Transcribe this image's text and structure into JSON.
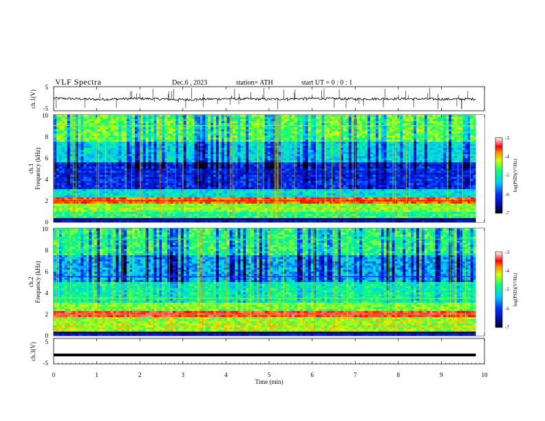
{
  "header": {
    "title": "VLF  Spectra",
    "date": "Dec.6  , 2023",
    "station": "station= ATH",
    "start_ut": "start  UT  =    0 : 0  : 1"
  },
  "chart_data": [
    {
      "type": "line",
      "panel": "ch1-waveform",
      "ylabel": "ch.1(V)",
      "ylim": [
        -5,
        5
      ],
      "yticks": [
        "5",
        "-5"
      ],
      "x": [
        0,
        1,
        2,
        3,
        4,
        5,
        6,
        7,
        8,
        9,
        9.8
      ],
      "values": [
        0.2,
        -0.3,
        0.1,
        -0.4,
        0.0,
        -0.2,
        0.1,
        -0.1,
        0.0,
        -0.2,
        -0.1
      ]
    },
    {
      "type": "heatmap",
      "panel": "ch1-spectrogram",
      "ylabel": "ch.1\nFrequency (kHz)",
      "ylim": [
        0,
        10
      ],
      "yticks": [
        "0",
        "2",
        "4",
        "6",
        "8",
        "10"
      ],
      "colorbar": {
        "label": "log(PSD)(V²/Hz)",
        "range": [
          -7,
          -3
        ],
        "ticks": [
          "-3",
          "-4",
          "-5",
          "-6",
          "-7"
        ]
      },
      "bands": [
        {
          "freq_khz": 2.0,
          "level": -3.5
        },
        {
          "freq_khz": 1.5,
          "level": -4.5
        },
        {
          "freq_khz": 4.5,
          "level": -6.5
        },
        {
          "freq_khz": 9.0,
          "level": -4.5
        }
      ]
    },
    {
      "type": "heatmap",
      "panel": "ch2-spectrogram",
      "ylabel": "ch.2\nFrequency (kHz)",
      "ylim": [
        0,
        10
      ],
      "yticks": [
        "0",
        "2",
        "4",
        "6",
        "8",
        "10"
      ],
      "colorbar": {
        "label": "log(PSD)(V²/Hz)",
        "range": [
          -7,
          -3
        ],
        "ticks": [
          "-3",
          "-4",
          "-5",
          "-6",
          "-7"
        ]
      },
      "bands": [
        {
          "freq_khz": 2.0,
          "level": -3.3
        },
        {
          "freq_khz": 3.5,
          "level": -4.5
        },
        {
          "freq_khz": 5.5,
          "level": -6.0
        },
        {
          "freq_khz": 9.0,
          "level": -4.8
        }
      ]
    },
    {
      "type": "line",
      "panel": "ch3-waveform",
      "ylabel": "ch.3(V)",
      "ylim": [
        -5,
        5
      ],
      "yticks": [
        "5",
        "-5"
      ],
      "x": [
        0,
        9.8
      ],
      "values": [
        -1.5,
        -1.5
      ]
    }
  ],
  "xaxis": {
    "label": "Time  (min)",
    "ticks": [
      "0",
      "1",
      "2",
      "3",
      "4",
      "5",
      "6",
      "7",
      "8",
      "9",
      "10"
    ],
    "xlim": [
      0,
      10
    ]
  },
  "colors": {
    "waveform": "#000000",
    "psd_colormap": [
      "#000080",
      "#0000ff",
      "#00c8ff",
      "#00ff80",
      "#ffff00",
      "#ff0000",
      "#ffe0e0"
    ]
  }
}
